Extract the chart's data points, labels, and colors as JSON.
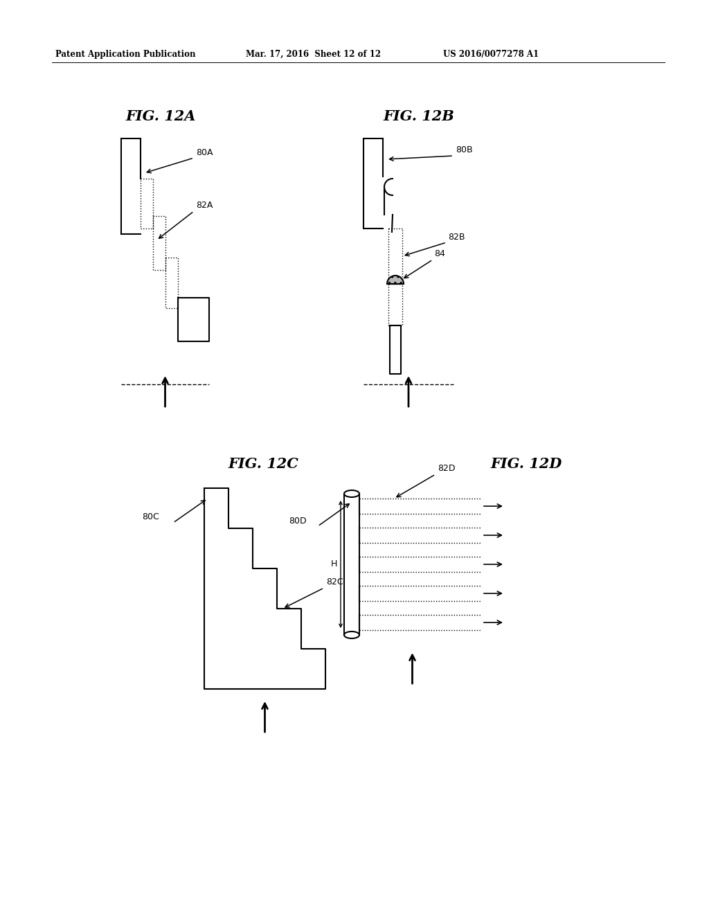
{
  "header_left": "Patent Application Publication",
  "header_mid": "Mar. 17, 2016  Sheet 12 of 12",
  "header_right": "US 2016/0077278 A1",
  "fig_12A_title": "FIG. 12A",
  "fig_12B_title": "FIG. 12B",
  "fig_12C_title": "FIG. 12C",
  "fig_12D_title": "FIG. 12D",
  "label_80A": "80A",
  "label_82A": "82A",
  "label_80B": "80B",
  "label_82B": "82B",
  "label_84": "84",
  "label_80C": "80C",
  "label_82C": "82C",
  "label_80D": "80D",
  "label_82D": "82D",
  "label_H": "H",
  "bg_color": "#ffffff",
  "line_color": "#000000"
}
